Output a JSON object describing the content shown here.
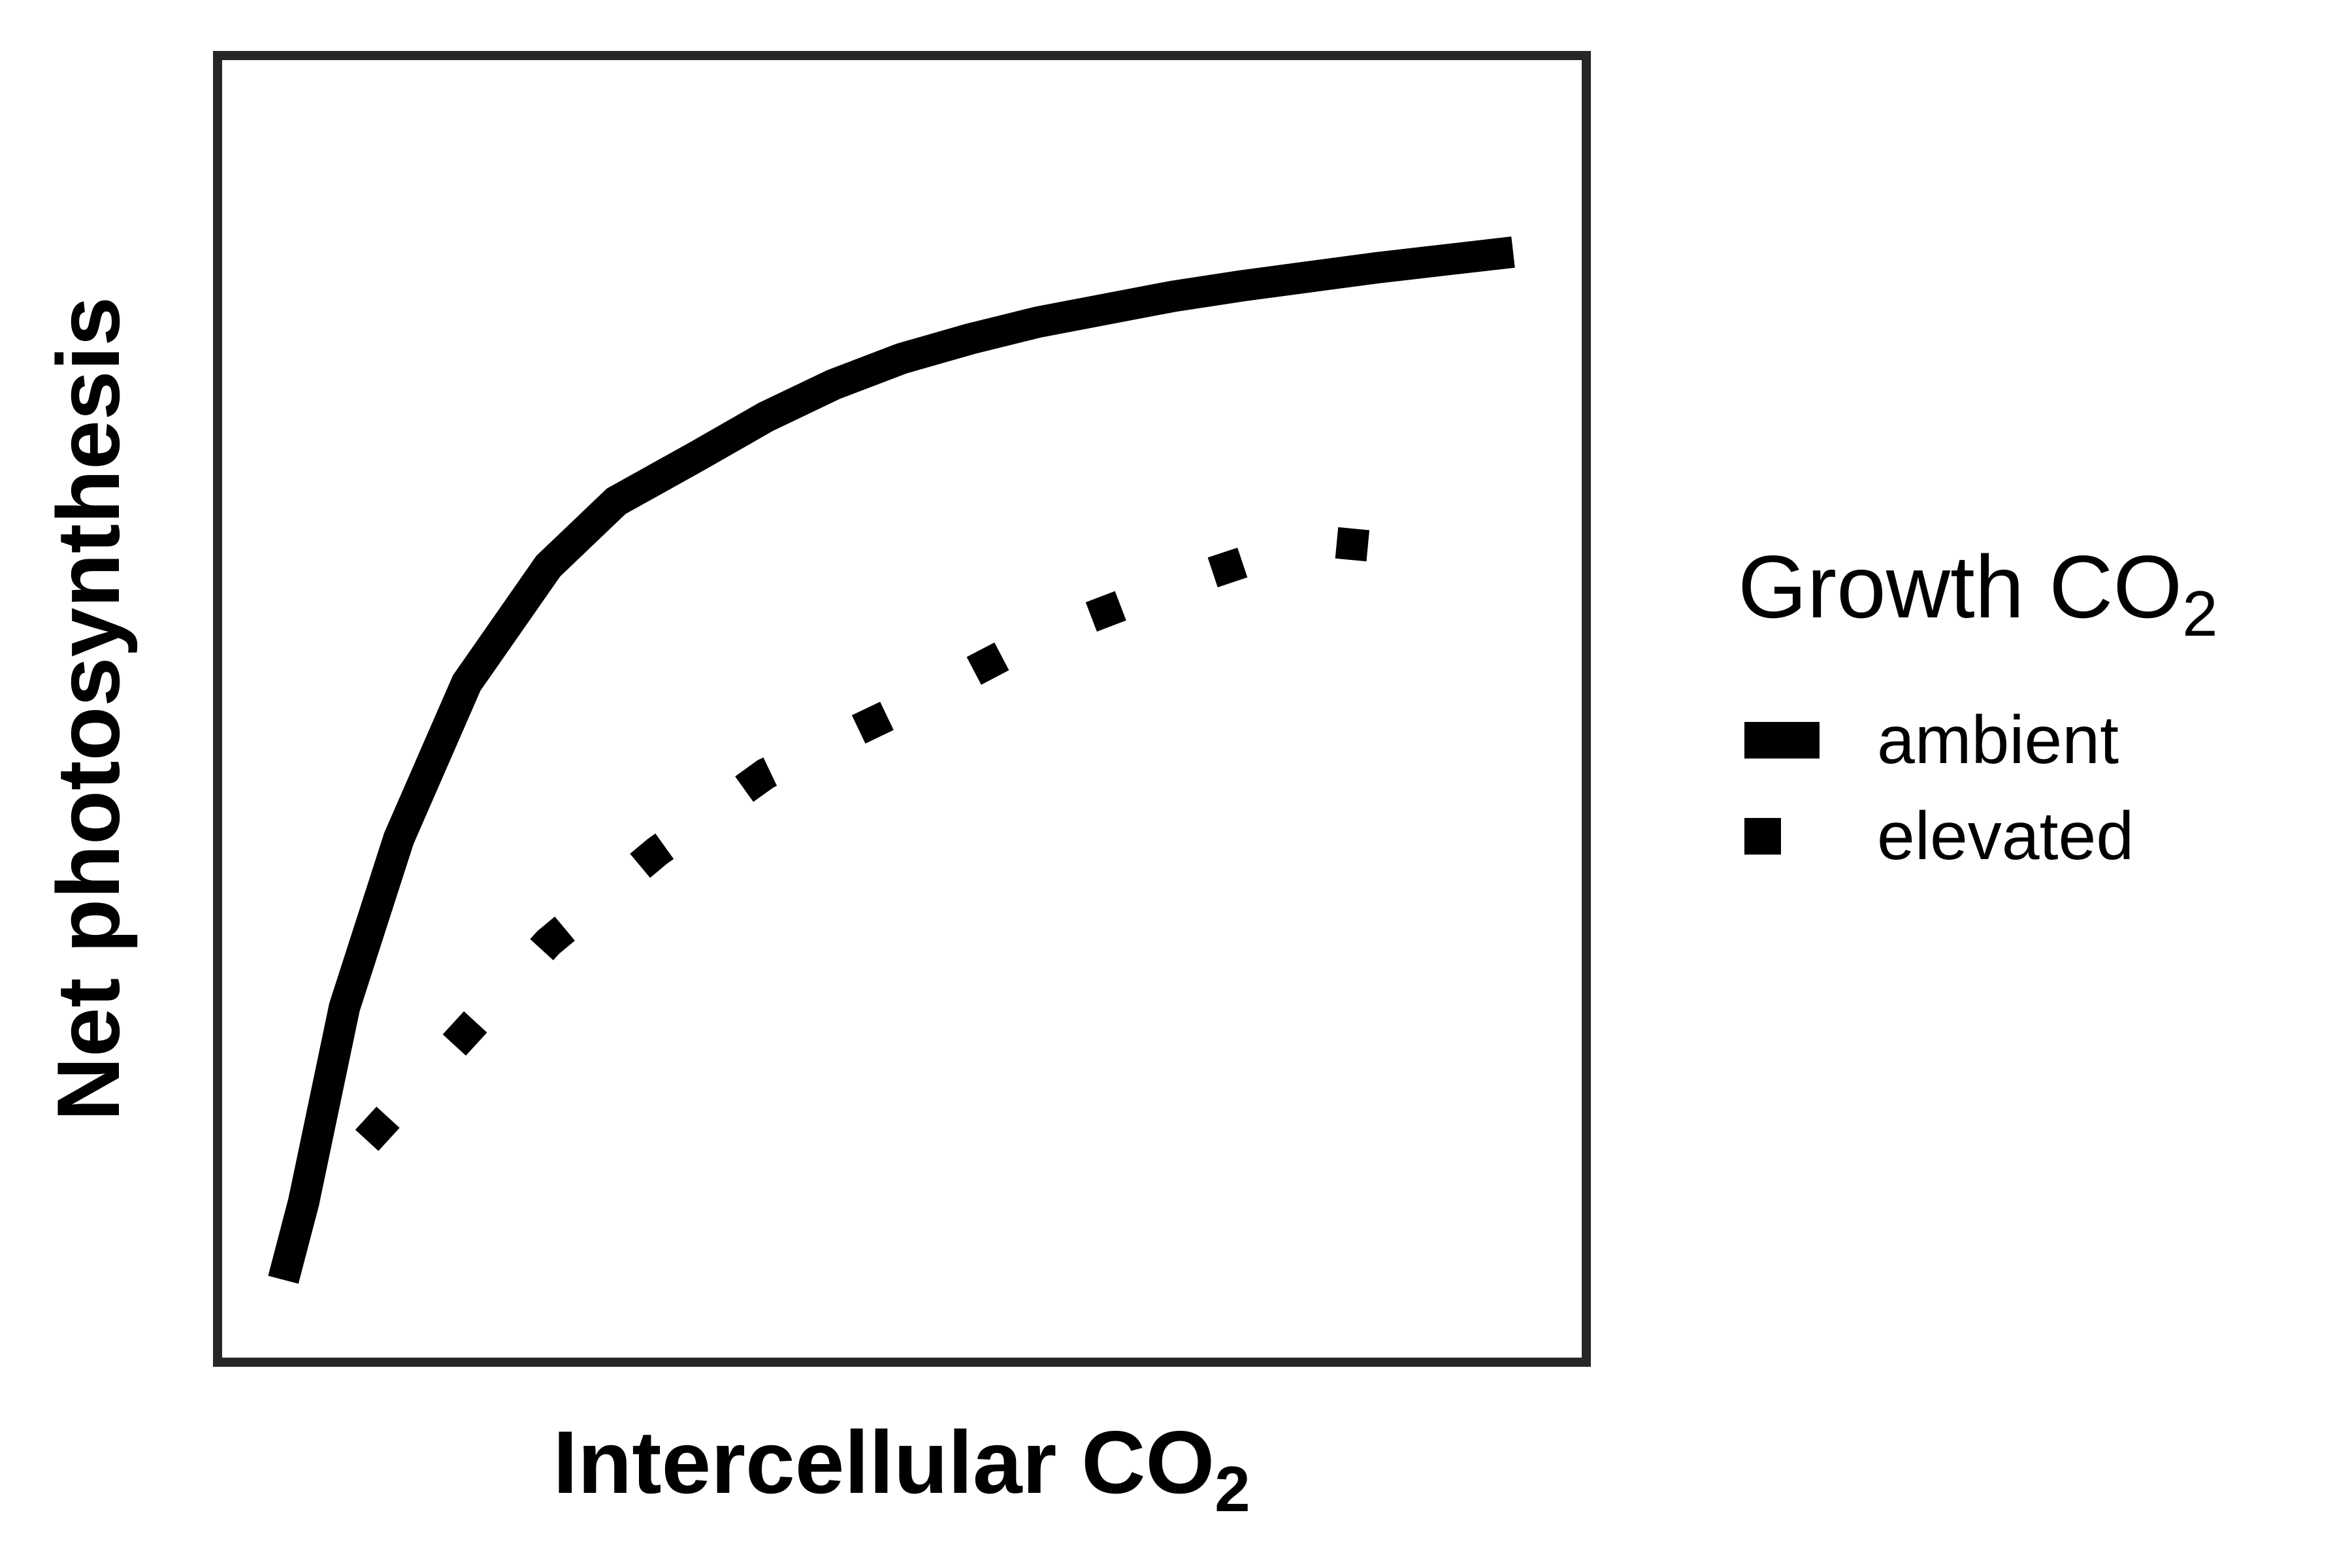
{
  "chart_data": {
    "type": "line",
    "title": "",
    "xlabel": {
      "text": "Intercellular CO",
      "subscript": "2"
    },
    "ylabel": "Net photosynthesis",
    "xlim": [
      0,
      10
    ],
    "ylim": [
      0,
      10
    ],
    "ticks": "none",
    "grid": false,
    "legend": {
      "position": "right",
      "title": {
        "text": "Growth CO",
        "subscript": "2"
      }
    },
    "series": [
      {
        "name": "ambient",
        "line_style": "solid",
        "color": "#000000",
        "x": [
          0.45,
          0.6,
          0.9,
          1.3,
          1.8,
          2.4,
          2.9,
          3.5,
          4.0,
          4.5,
          5.0,
          5.5,
          6.0,
          6.5,
          7.0,
          7.5,
          8.0,
          8.5,
          9.0,
          9.5
        ],
        "y": [
          0.6,
          1.2,
          2.7,
          4.0,
          5.2,
          6.1,
          6.6,
          6.95,
          7.25,
          7.5,
          7.7,
          7.85,
          7.98,
          8.08,
          8.18,
          8.26,
          8.33,
          8.4,
          8.46,
          8.52
        ]
      },
      {
        "name": "elevated",
        "line_style": "dotted",
        "color": "#000000",
        "x": [
          1.0,
          1.7,
          2.4,
          3.2,
          4.0,
          5.0,
          6.0,
          7.0,
          8.0,
          9.0
        ],
        "y": [
          1.6,
          2.4,
          3.2,
          3.9,
          4.5,
          5.0,
          5.55,
          5.95,
          6.3,
          6.2
        ]
      }
    ]
  }
}
